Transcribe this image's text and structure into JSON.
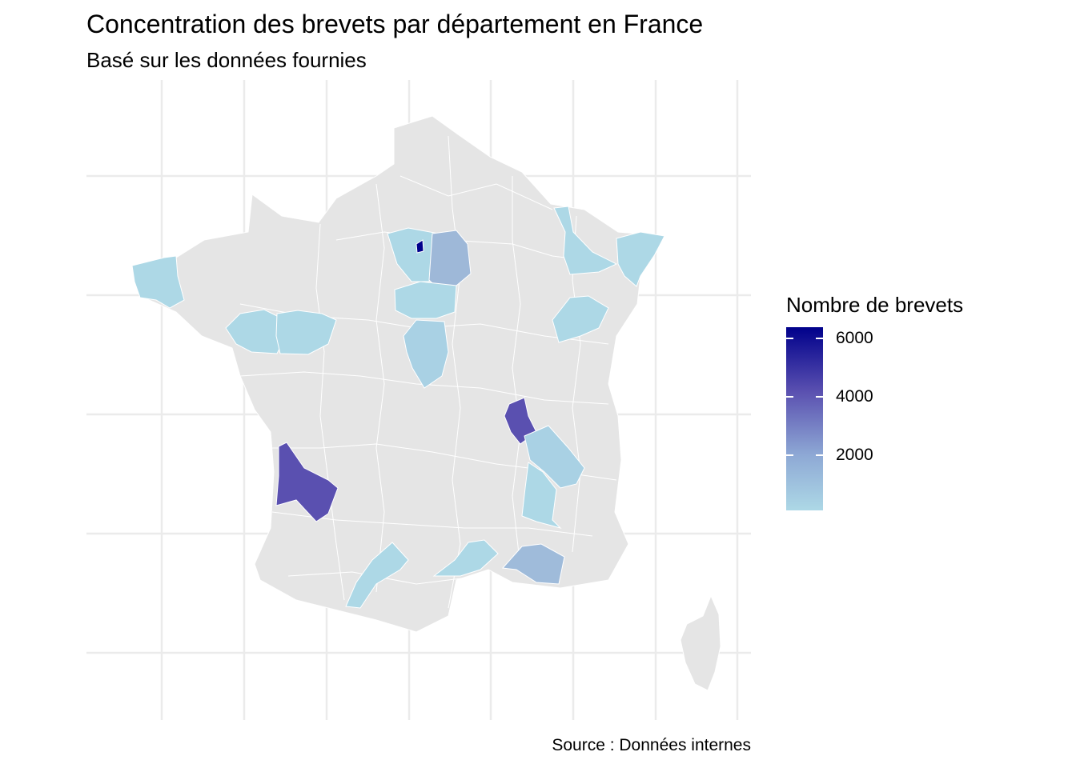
{
  "title": "Concentration des brevets par département en France",
  "subtitle": "Basé sur les données fournies",
  "caption": "Source : Données internes",
  "legend": {
    "title": "Nombre de brevets",
    "ticks": [
      "6000",
      "4000",
      "2000"
    ],
    "colors": {
      "high": "#00008b",
      "mid": "#5a50b0",
      "low": "#add8e6"
    },
    "range": [
      0,
      6300
    ]
  },
  "map_style": {
    "land": "#e5e5e5",
    "border": "#ffffff",
    "grid": "#ebebeb"
  },
  "regions": [
    {
      "name": "Paris",
      "color": "#00008b",
      "level": 6300
    },
    {
      "name": "Hauts-de-Seine / Val-d'Oise / Yvelines",
      "color": "#add8e6",
      "level": 200
    },
    {
      "name": "Seine-et-Marne",
      "color": "#9eb8d8",
      "level": 1000
    },
    {
      "name": "Loiret",
      "color": "#add8e6",
      "level": 200
    },
    {
      "name": "Cher",
      "color": "#a9d1e4",
      "level": 500
    },
    {
      "name": "Finistère",
      "color": "#add8e6",
      "level": 200
    },
    {
      "name": "Loire-Atlantique",
      "color": "#add8e6",
      "level": 200
    },
    {
      "name": "Maine-et-Loire",
      "color": "#add8e6",
      "level": 200
    },
    {
      "name": "Meuse / Moselle",
      "color": "#add8e6",
      "level": 200
    },
    {
      "name": "Bas-Rhin",
      "color": "#add8e6",
      "level": 200
    },
    {
      "name": "Côte-d'Or",
      "color": "#add8e6",
      "level": 200
    },
    {
      "name": "Rhône",
      "color": "#5a50b0",
      "level": 4200
    },
    {
      "name": "Gironde",
      "color": "#5a50b0",
      "level": 4300
    },
    {
      "name": "Isère",
      "color": "#a9d1e4",
      "level": 500
    },
    {
      "name": "Drôme",
      "color": "#add8e6",
      "level": 200
    },
    {
      "name": "Bouches-du-Rhône",
      "color": "#9fbbda",
      "level": 900
    },
    {
      "name": "Hérault",
      "color": "#add8e6",
      "level": 200
    },
    {
      "name": "Haute-Garonne",
      "color": "#add8e6",
      "level": 200
    }
  ]
}
